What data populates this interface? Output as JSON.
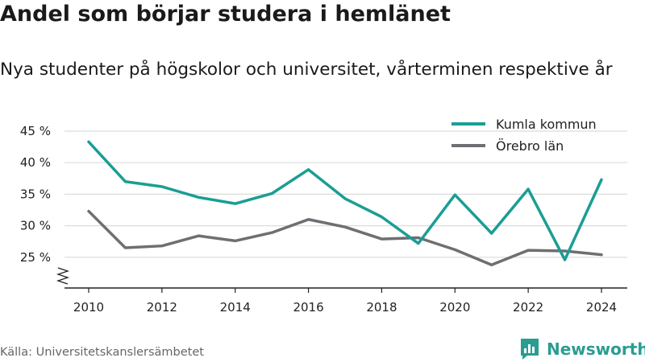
{
  "title": "Andel som börjar studera i hemlänet",
  "subtitle": "Nya studenter på högskolor och universitet, vårterminen respektive år",
  "source": "Källa: Universitetskanslersämbetet",
  "brand": {
    "name": "Newsworthy",
    "icon": "newsworthy-logo-icon",
    "color": "#2a9d92"
  },
  "chart_data": {
    "type": "line",
    "title": "",
    "xlabel": "",
    "ylabel": "",
    "x": [
      2010,
      2011,
      2012,
      2013,
      2014,
      2015,
      2016,
      2017,
      2018,
      2019,
      2020,
      2021,
      2022,
      2023,
      2024
    ],
    "x_ticks": [
      2010,
      2012,
      2014,
      2016,
      2018,
      2020,
      2022,
      2024
    ],
    "y_ticks": [
      25,
      30,
      35,
      40,
      45
    ],
    "y_tick_labels": [
      "25 %",
      "30 %",
      "35 %",
      "40 %",
      "45 %"
    ],
    "ylim": [
      20,
      45
    ],
    "y_axis_break": true,
    "grid": "horizontal",
    "legend_position": "top-right",
    "series": [
      {
        "name": "Kumla kommun",
        "color": "#1a9e94",
        "values": [
          43.3,
          37.0,
          36.2,
          34.5,
          33.5,
          35.1,
          38.9,
          34.3,
          31.4,
          27.2,
          34.9,
          28.8,
          35.8,
          24.6,
          37.3
        ]
      },
      {
        "name": "Örebro län",
        "color": "#6e6e73",
        "values": [
          32.3,
          26.5,
          26.8,
          28.4,
          27.6,
          28.9,
          31.0,
          29.8,
          27.9,
          28.1,
          26.2,
          23.8,
          26.1,
          26.0,
          25.4
        ]
      }
    ]
  }
}
